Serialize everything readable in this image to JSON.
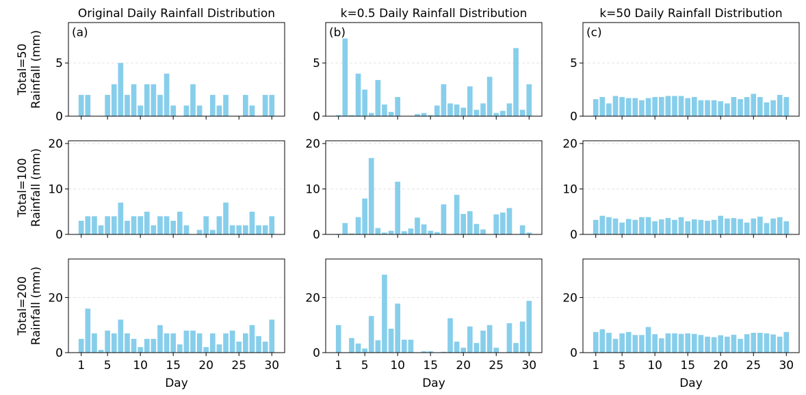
{
  "figure": {
    "xlabel": "Day",
    "ylabel": "Rainfall (mm)",
    "bar_color": "#87CEEB",
    "grid_color": "#d9d9d9"
  },
  "chart_data": [
    {
      "type": "bar",
      "title": "Original Daily Rainfall Distribution",
      "row_label": "Total=50",
      "ylabel": "Rainfall (mm)",
      "tag": "(a)",
      "xlabel": "",
      "ylim": [
        0,
        8.8
      ],
      "yticks": [
        0,
        5
      ],
      "xticks": [
        1,
        5,
        10,
        15,
        20,
        25,
        30
      ],
      "grid": "y",
      "x": [
        1,
        2,
        3,
        4,
        5,
        6,
        7,
        8,
        9,
        10,
        11,
        12,
        13,
        14,
        15,
        16,
        17,
        18,
        19,
        20,
        21,
        22,
        23,
        24,
        25,
        26,
        27,
        28,
        29,
        30
      ],
      "values": [
        2,
        2,
        0,
        0,
        2,
        3,
        5,
        2,
        3,
        1,
        3,
        3,
        2,
        4,
        1,
        0,
        1,
        3,
        1,
        0,
        2,
        1,
        2,
        0,
        0,
        2,
        1,
        0,
        2,
        2
      ]
    },
    {
      "type": "bar",
      "title": "k=0.5 Daily Rainfall Distribution",
      "row_label": "Total=50",
      "ylabel": "",
      "tag": "(b)",
      "xlabel": "",
      "ylim": [
        0,
        8.8
      ],
      "yticks": [
        0,
        5
      ],
      "xticks": [
        1,
        5,
        10,
        15,
        20,
        25,
        30
      ],
      "grid": "y",
      "x": [
        1,
        2,
        3,
        4,
        5,
        6,
        7,
        8,
        9,
        10,
        11,
        12,
        13,
        14,
        15,
        16,
        17,
        18,
        19,
        20,
        21,
        22,
        23,
        24,
        25,
        26,
        27,
        28,
        29,
        30
      ],
      "values": [
        0.1,
        7.3,
        0.1,
        4.0,
        2.5,
        0.3,
        3.4,
        1.1,
        0.4,
        1.8,
        0,
        0,
        0.2,
        0.3,
        0.1,
        1.0,
        3.0,
        1.2,
        1.1,
        0.8,
        2.8,
        0.6,
        1.2,
        3.7,
        0.3,
        0.5,
        1.2,
        6.4,
        0.6,
        3.0
      ]
    },
    {
      "type": "bar",
      "title": "k=50 Daily Rainfall Distribution",
      "row_label": "Total=50",
      "ylabel": "",
      "tag": "(c)",
      "xlabel": "",
      "ylim": [
        0,
        8.8
      ],
      "yticks": [
        0,
        5
      ],
      "xticks": [
        1,
        5,
        10,
        15,
        20,
        25,
        30
      ],
      "grid": "y",
      "x": [
        1,
        2,
        3,
        4,
        5,
        6,
        7,
        8,
        9,
        10,
        11,
        12,
        13,
        14,
        15,
        16,
        17,
        18,
        19,
        20,
        21,
        22,
        23,
        24,
        25,
        26,
        27,
        28,
        29,
        30
      ],
      "values": [
        1.6,
        1.8,
        1.2,
        1.9,
        1.8,
        1.7,
        1.7,
        1.5,
        1.7,
        1.8,
        1.8,
        1.9,
        1.9,
        1.9,
        1.7,
        1.8,
        1.5,
        1.5,
        1.5,
        1.4,
        1.2,
        1.8,
        1.6,
        1.8,
        2.1,
        1.8,
        1.3,
        1.5,
        2.0,
        1.8
      ]
    },
    {
      "type": "bar",
      "title": "",
      "row_label": "Total=100",
      "ylabel": "Rainfall (mm)",
      "tag": "",
      "xlabel": "",
      "ylim": [
        0,
        20.6
      ],
      "yticks": [
        0,
        10,
        20
      ],
      "xticks": [
        1,
        5,
        10,
        15,
        20,
        25,
        30
      ],
      "grid": "y",
      "x": [
        1,
        2,
        3,
        4,
        5,
        6,
        7,
        8,
        9,
        10,
        11,
        12,
        13,
        14,
        15,
        16,
        17,
        18,
        19,
        20,
        21,
        22,
        23,
        24,
        25,
        26,
        27,
        28,
        29,
        30
      ],
      "values": [
        3,
        4,
        4,
        2,
        4,
        4,
        7,
        3,
        4,
        4,
        5,
        2,
        4,
        4,
        3,
        5,
        2,
        0,
        1,
        4,
        1,
        4,
        7,
        2,
        2,
        2,
        5,
        2,
        2,
        4
      ]
    },
    {
      "type": "bar",
      "title": "",
      "row_label": "Total=100",
      "ylabel": "",
      "tag": "",
      "xlabel": "",
      "ylim": [
        0,
        20.6
      ],
      "yticks": [
        0,
        10,
        20
      ],
      "xticks": [
        1,
        5,
        10,
        15,
        20,
        25,
        30
      ],
      "grid": "y",
      "x": [
        1,
        2,
        3,
        4,
        5,
        6,
        7,
        8,
        9,
        10,
        11,
        12,
        13,
        14,
        15,
        16,
        17,
        18,
        19,
        20,
        21,
        22,
        23,
        24,
        25,
        26,
        27,
        28,
        29,
        30
      ],
      "values": [
        0.1,
        2.5,
        0.2,
        3.8,
        7.9,
        16.8,
        1.4,
        0.4,
        0.8,
        11.6,
        0.7,
        1.3,
        3.7,
        2.2,
        0.8,
        0.5,
        6.6,
        0,
        8.7,
        4.5,
        5.1,
        2.3,
        1.1,
        0,
        4.4,
        4.8,
        5.8,
        0,
        2.0,
        0.4
      ]
    },
    {
      "type": "bar",
      "title": "",
      "row_label": "Total=100",
      "ylabel": "",
      "tag": "",
      "xlabel": "",
      "ylim": [
        0,
        20.6
      ],
      "yticks": [
        0,
        10,
        20
      ],
      "xticks": [
        1,
        5,
        10,
        15,
        20,
        25,
        30
      ],
      "grid": "y",
      "x": [
        1,
        2,
        3,
        4,
        5,
        6,
        7,
        8,
        9,
        10,
        11,
        12,
        13,
        14,
        15,
        16,
        17,
        18,
        19,
        20,
        21,
        22,
        23,
        24,
        25,
        26,
        27,
        28,
        29,
        30
      ],
      "values": [
        3.2,
        4.1,
        3.8,
        3.5,
        2.6,
        3.4,
        3.2,
        3.8,
        3.8,
        2.9,
        3.3,
        3.6,
        3.2,
        3.8,
        2.9,
        3.3,
        3.2,
        3.0,
        3.2,
        4.1,
        3.5,
        3.6,
        3.4,
        2.6,
        3.5,
        3.9,
        2.5,
        3.5,
        3.8,
        2.9
      ]
    },
    {
      "type": "bar",
      "title": "",
      "row_label": "Total=200",
      "ylabel": "Rainfall (mm)",
      "tag": "",
      "xlabel": "Day",
      "ylim": [
        0,
        34
      ],
      "yticks": [
        0,
        20
      ],
      "xticks": [
        1,
        5,
        10,
        15,
        20,
        25,
        30
      ],
      "grid": "y",
      "x": [
        1,
        2,
        3,
        4,
        5,
        6,
        7,
        8,
        9,
        10,
        11,
        12,
        13,
        14,
        15,
        16,
        17,
        18,
        19,
        20,
        21,
        22,
        23,
        24,
        25,
        26,
        27,
        28,
        29,
        30
      ],
      "values": [
        5,
        16,
        7,
        1,
        8,
        7,
        12,
        7,
        5,
        2,
        5,
        5,
        10,
        7,
        7,
        3,
        8,
        8,
        7,
        2,
        7,
        3,
        7,
        8,
        4,
        7,
        10,
        6,
        4,
        12
      ]
    },
    {
      "type": "bar",
      "title": "",
      "row_label": "Total=200",
      "ylabel": "",
      "tag": "",
      "xlabel": "Day",
      "ylim": [
        0,
        34
      ],
      "yticks": [
        0,
        20
      ],
      "xticks": [
        1,
        5,
        10,
        15,
        20,
        25,
        30
      ],
      "grid": "y",
      "x": [
        1,
        2,
        3,
        4,
        5,
        6,
        7,
        8,
        9,
        10,
        11,
        12,
        13,
        14,
        15,
        16,
        17,
        18,
        19,
        20,
        21,
        22,
        23,
        24,
        25,
        26,
        27,
        28,
        29,
        30
      ],
      "values": [
        10,
        0,
        5.3,
        3.3,
        1.5,
        13.3,
        4.5,
        28.3,
        8.7,
        17.8,
        4.7,
        4.7,
        0,
        0.5,
        0.5,
        0,
        0.3,
        12.5,
        4.0,
        1.8,
        9.5,
        3.5,
        8.0,
        10.0,
        1.8,
        0,
        10.7,
        3.5,
        11.3,
        18.8
      ]
    },
    {
      "type": "bar",
      "title": "",
      "row_label": "Total=200",
      "ylabel": "",
      "tag": "",
      "xlabel": "Day",
      "ylim": [
        0,
        34
      ],
      "yticks": [
        0,
        20
      ],
      "xticks": [
        1,
        5,
        10,
        15,
        20,
        25,
        30
      ],
      "grid": "y",
      "x": [
        1,
        2,
        3,
        4,
        5,
        6,
        7,
        8,
        9,
        10,
        11,
        12,
        13,
        14,
        15,
        16,
        17,
        18,
        19,
        20,
        21,
        22,
        23,
        24,
        25,
        26,
        27,
        28,
        29,
        30
      ],
      "values": [
        7.5,
        8.5,
        7.2,
        5.0,
        7.0,
        7.5,
        6.4,
        6.4,
        9.3,
        6.7,
        5.2,
        7.0,
        7.0,
        6.8,
        7.0,
        6.8,
        6.4,
        5.8,
        5.6,
        6.3,
        5.8,
        6.5,
        5.0,
        6.7,
        7.2,
        7.2,
        7.0,
        6.6,
        5.8,
        7.5
      ]
    }
  ]
}
